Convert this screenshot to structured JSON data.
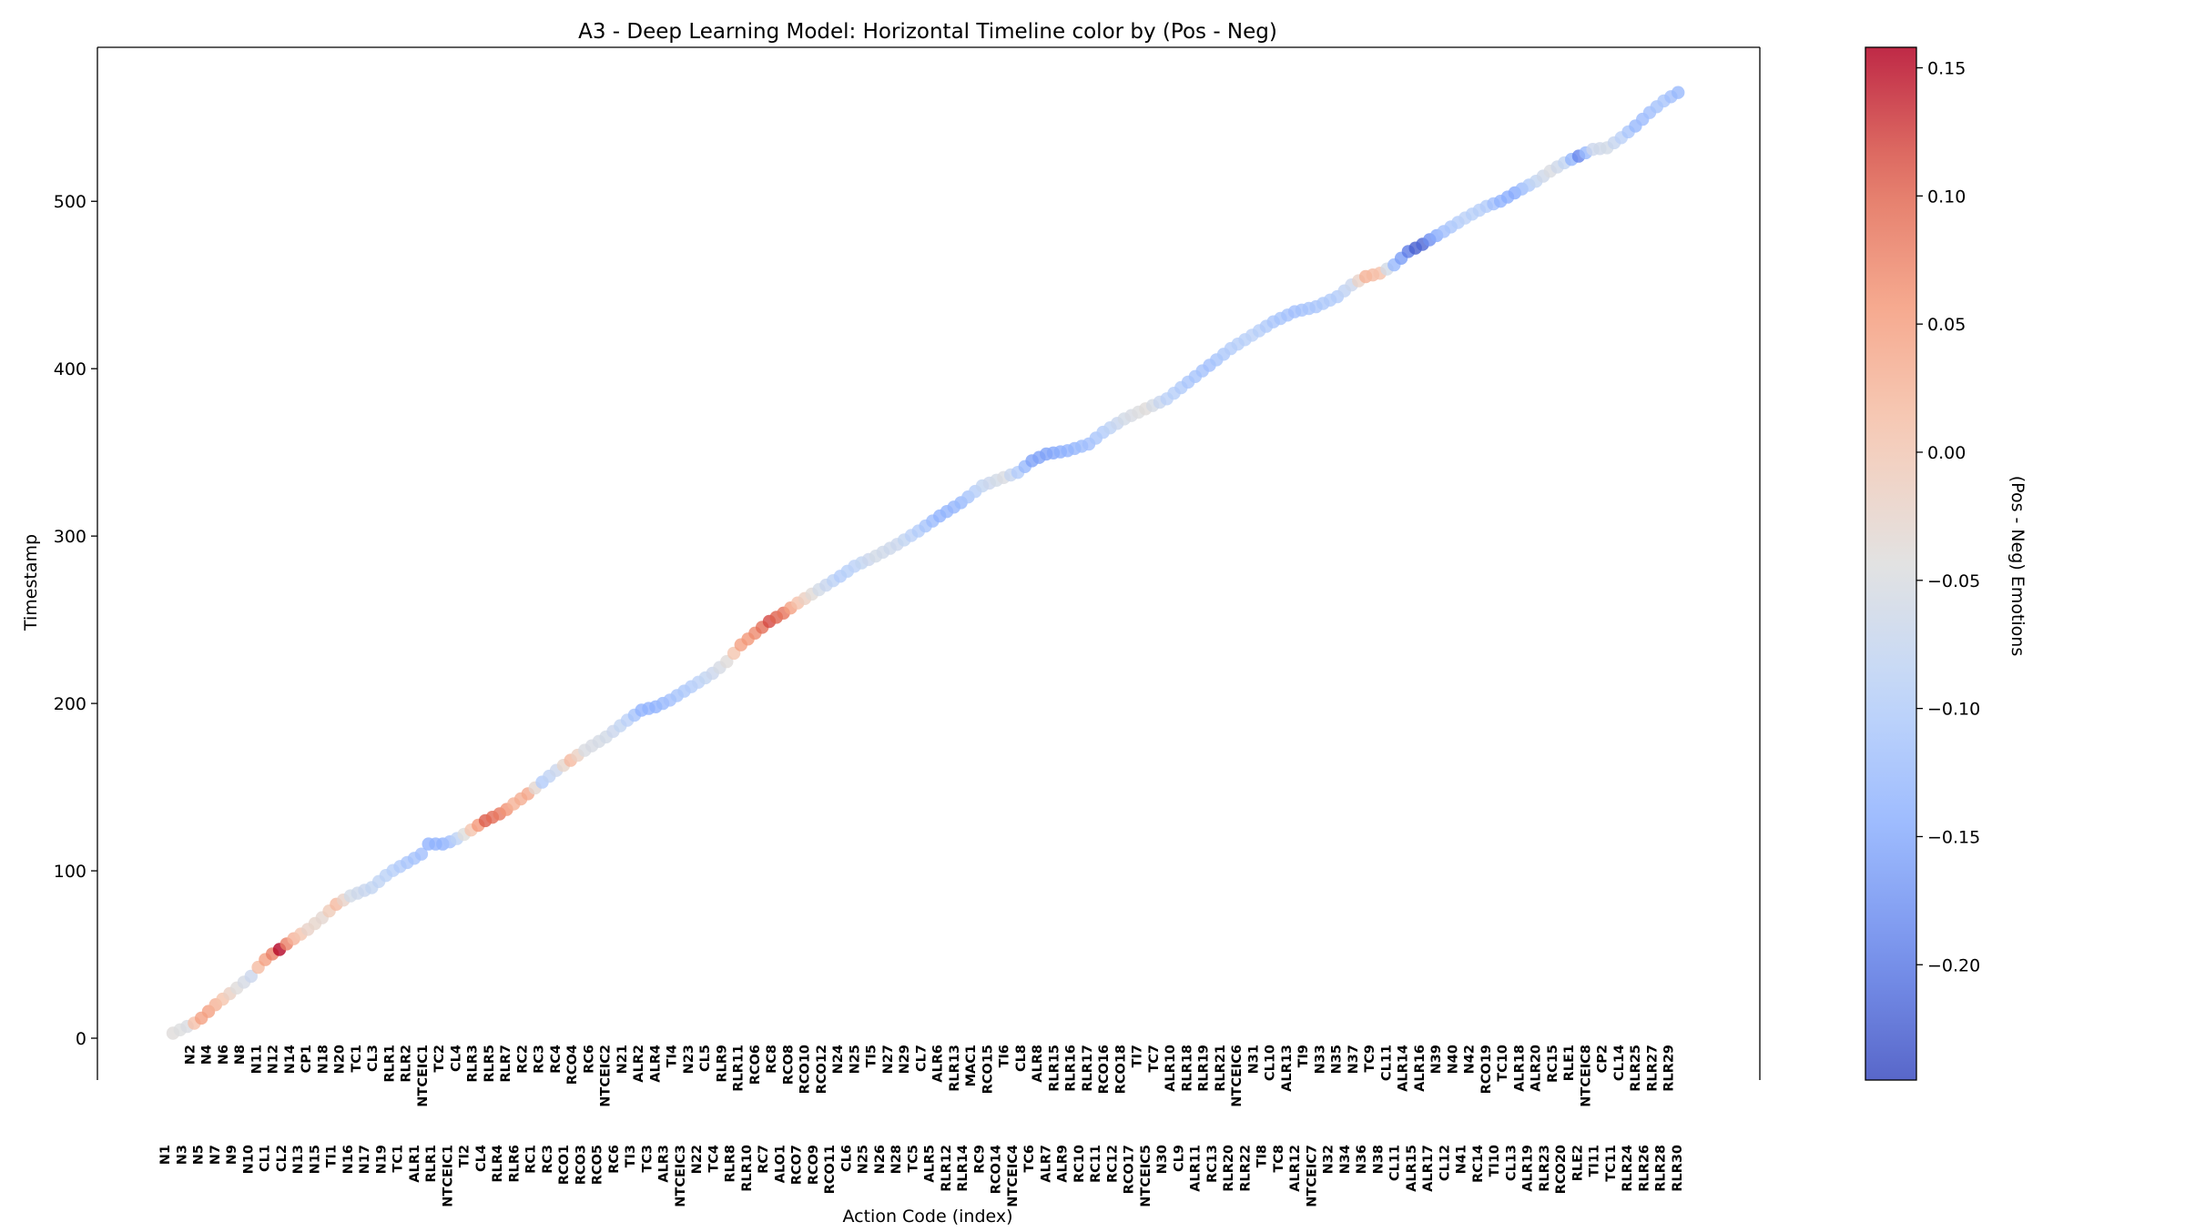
{
  "chart_data": {
    "type": "scatter",
    "title": "A3 - Deep Learning Model: Horizontal Timeline color by (Pos - Neg)",
    "xlabel": "Action Code (index)",
    "ylabel": "Timestamp",
    "ylim": [
      -25,
      592
    ],
    "yticks": [
      0,
      100,
      200,
      300,
      400,
      500
    ],
    "grid": false,
    "colorbar": {
      "label": "(Pos - Neg) Emotions",
      "min": -0.245,
      "max": 0.158,
      "ticks": [
        -0.2,
        -0.15,
        -0.1,
        -0.05,
        0.0,
        0.05,
        0.1,
        0.15
      ],
      "tick_labels": [
        "−0.20",
        "−0.15",
        "−0.10",
        "−0.05",
        "0.00",
        "0.05",
        "0.10",
        "0.15"
      ],
      "colormap": "coolwarm"
    },
    "row_top_labels": [
      "N2",
      "N4",
      "N6",
      "N8",
      "N11",
      "N12",
      "N14",
      "CP1",
      "N18",
      "N20",
      "TC1",
      "CL3",
      "RLR1",
      "RLR2",
      "NTCEIC1",
      "TC2",
      "CL4",
      "RLR3",
      "RLR5",
      "RLR7",
      "RC2",
      "RC3",
      "RC4",
      "RCO4",
      "RC6",
      "NTCEIC2",
      "N21",
      "ALR2",
      "ALR4",
      "TI4",
      "N23",
      "CL5",
      "RLR9",
      "RLR11",
      "RCO6",
      "RC8",
      "RCO8",
      "RCO10",
      "RCO12",
      "N24",
      "N25",
      "TI5",
      "N27",
      "N29",
      "CL7",
      "ALR6",
      "RLR13",
      "MAC1",
      "RCO15",
      "TI6",
      "CL8",
      "ALR8",
      "RLR15",
      "RLR16",
      "RLR17",
      "RCO16",
      "RCO18",
      "TI7",
      "TC7",
      "ALR10",
      "RLR18",
      "RLR19",
      "RLR21",
      "NTCEIC6",
      "N31",
      "CL10",
      "ALR13",
      "TI9",
      "N33",
      "N35",
      "N37",
      "TC9",
      "CL11",
      "ALR14",
      "ALR16",
      "N39",
      "N40",
      "N42",
      "RCO19",
      "TC10",
      "ALR18",
      "ALR20",
      "RC15",
      "RLE1",
      "NTCEIC8",
      "CP2",
      "CL14",
      "RLR25",
      "RLR27",
      "RLR29"
    ],
    "row_bottom_labels": [
      "N1",
      "N3",
      "N5",
      "N7",
      "N9",
      "N10",
      "CL1",
      "CL2",
      "N13",
      "N15",
      "TI1",
      "N16",
      "N17",
      "N19",
      "TC1",
      "ALR1",
      "RLR1",
      "NTCEIC1",
      "TI2",
      "CL4",
      "RLR4",
      "RLR6",
      "RC1",
      "RC3",
      "RCO1",
      "RCO3",
      "RCO5",
      "RC6",
      "TI3",
      "TC3",
      "ALR3",
      "NTCEIC3",
      "N22",
      "TC4",
      "RLR8",
      "RLR10",
      "RC7",
      "ALO1",
      "RCO7",
      "RCO9",
      "RCO11",
      "CL6",
      "N25",
      "N26",
      "N28",
      "TC5",
      "ALR5",
      "RLR12",
      "RLR14",
      "RC9",
      "RCO14",
      "NTCEIC4",
      "TC6",
      "ALR7",
      "ALR9",
      "RC10",
      "RC11",
      "RC12",
      "RCO17",
      "NTCEIC5",
      "N30",
      "CL9",
      "ALR11",
      "RC13",
      "RLR20",
      "RLR22",
      "TI8",
      "TC8",
      "ALR12",
      "NTCEIC7",
      "N32",
      "N34",
      "N36",
      "N38",
      "CL11",
      "ALR15",
      "ALR17",
      "CL12",
      "N41",
      "RC14",
      "TI10",
      "CL13",
      "ALR19",
      "RLR23",
      "RCO20",
      "RLE2",
      "TI11",
      "TC11",
      "RLR24",
      "RLR26",
      "RLR28",
      "RLR30"
    ],
    "anchors": [
      {
        "x": 0,
        "y": 3,
        "c": -0.04
      },
      {
        "x": 4,
        "y": 7,
        "c": -0.05
      },
      {
        "x": 7,
        "y": 10,
        "c": 0.04
      },
      {
        "x": 9,
        "y": 14,
        "c": 0.06
      },
      {
        "x": 12,
        "y": 20,
        "c": 0.03
      },
      {
        "x": 18,
        "y": 30,
        "c": -0.04
      },
      {
        "x": 22,
        "y": 37,
        "c": -0.07
      },
      {
        "x": 25,
        "y": 45,
        "c": 0.06
      },
      {
        "x": 27,
        "y": 49,
        "c": 0.04
      },
      {
        "x": 30,
        "y": 53,
        "c": 0.16
      },
      {
        "x": 33,
        "y": 58,
        "c": 0.04
      },
      {
        "x": 38,
        "y": 65,
        "c": -0.02
      },
      {
        "x": 42,
        "y": 72,
        "c": -0.03
      },
      {
        "x": 46,
        "y": 80,
        "c": 0.02
      },
      {
        "x": 50,
        "y": 85,
        "c": -0.06
      },
      {
        "x": 56,
        "y": 90,
        "c": -0.08
      },
      {
        "x": 61,
        "y": 99,
        "c": -0.09
      },
      {
        "x": 66,
        "y": 105,
        "c": -0.11
      },
      {
        "x": 70,
        "y": 110,
        "c": -0.12
      },
      {
        "x": 72,
        "y": 116,
        "c": -0.14
      },
      {
        "x": 76,
        "y": 116,
        "c": -0.14
      },
      {
        "x": 79,
        "y": 118,
        "c": -0.11
      },
      {
        "x": 83,
        "y": 123,
        "c": -0.02
      },
      {
        "x": 88,
        "y": 130,
        "c": 0.11
      },
      {
        "x": 93,
        "y": 135,
        "c": 0.08
      },
      {
        "x": 96,
        "y": 140,
        "c": 0.03
      },
      {
        "x": 100,
        "y": 146,
        "c": 0.04
      },
      {
        "x": 104,
        "y": 153,
        "c": -0.1
      },
      {
        "x": 108,
        "y": 160,
        "c": -0.07
      },
      {
        "x": 112,
        "y": 166,
        "c": 0.02
      },
      {
        "x": 116,
        "y": 172,
        "c": -0.05
      },
      {
        "x": 122,
        "y": 180,
        "c": -0.06
      },
      {
        "x": 128,
        "y": 190,
        "c": -0.09
      },
      {
        "x": 132,
        "y": 196,
        "c": -0.14
      },
      {
        "x": 136,
        "y": 198,
        "c": -0.14
      },
      {
        "x": 140,
        "y": 202,
        "c": -0.12
      },
      {
        "x": 146,
        "y": 210,
        "c": -0.1
      },
      {
        "x": 152,
        "y": 218,
        "c": -0.07
      },
      {
        "x": 156,
        "y": 225,
        "c": -0.04
      },
      {
        "x": 160,
        "y": 235,
        "c": 0.05
      },
      {
        "x": 164,
        "y": 242,
        "c": 0.07
      },
      {
        "x": 168,
        "y": 249,
        "c": 0.12
      },
      {
        "x": 172,
        "y": 254,
        "c": 0.09
      },
      {
        "x": 176,
        "y": 260,
        "c": 0.01
      },
      {
        "x": 182,
        "y": 268,
        "c": -0.06
      },
      {
        "x": 188,
        "y": 276,
        "c": -0.1
      },
      {
        "x": 192,
        "y": 282,
        "c": -0.09
      },
      {
        "x": 198,
        "y": 288,
        "c": -0.06
      },
      {
        "x": 204,
        "y": 295,
        "c": -0.07
      },
      {
        "x": 210,
        "y": 303,
        "c": -0.1
      },
      {
        "x": 216,
        "y": 312,
        "c": -0.14
      },
      {
        "x": 222,
        "y": 320,
        "c": -0.13
      },
      {
        "x": 228,
        "y": 330,
        "c": -0.08
      },
      {
        "x": 234,
        "y": 335,
        "c": -0.05
      },
      {
        "x": 238,
        "y": 338,
        "c": -0.1
      },
      {
        "x": 242,
        "y": 345,
        "c": -0.16
      },
      {
        "x": 246,
        "y": 349,
        "c": -0.16
      },
      {
        "x": 252,
        "y": 351,
        "c": -0.14
      },
      {
        "x": 258,
        "y": 355,
        "c": -0.12
      },
      {
        "x": 262,
        "y": 362,
        "c": -0.1
      },
      {
        "x": 268,
        "y": 370,
        "c": -0.06
      },
      {
        "x": 274,
        "y": 376,
        "c": -0.04
      },
      {
        "x": 280,
        "y": 382,
        "c": -0.09
      },
      {
        "x": 286,
        "y": 392,
        "c": -0.11
      },
      {
        "x": 292,
        "y": 402,
        "c": -0.12
      },
      {
        "x": 298,
        "y": 412,
        "c": -0.1
      },
      {
        "x": 304,
        "y": 420,
        "c": -0.09
      },
      {
        "x": 310,
        "y": 428,
        "c": -0.11
      },
      {
        "x": 316,
        "y": 434,
        "c": -0.12
      },
      {
        "x": 322,
        "y": 437,
        "c": -0.11
      },
      {
        "x": 328,
        "y": 443,
        "c": -0.1
      },
      {
        "x": 332,
        "y": 450,
        "c": -0.07
      },
      {
        "x": 336,
        "y": 455,
        "c": 0.03
      },
      {
        "x": 340,
        "y": 457,
        "c": 0.01
      },
      {
        "x": 344,
        "y": 462,
        "c": -0.13
      },
      {
        "x": 348,
        "y": 470,
        "c": -0.2
      },
      {
        "x": 351,
        "y": 473,
        "c": -0.24
      },
      {
        "x": 354,
        "y": 477,
        "c": -0.18
      },
      {
        "x": 358,
        "y": 482,
        "c": -0.12
      },
      {
        "x": 364,
        "y": 490,
        "c": -0.09
      },
      {
        "x": 370,
        "y": 497,
        "c": -0.1
      },
      {
        "x": 374,
        "y": 500,
        "c": -0.14
      },
      {
        "x": 378,
        "y": 505,
        "c": -0.15
      },
      {
        "x": 384,
        "y": 512,
        "c": -0.08
      },
      {
        "x": 388,
        "y": 518,
        "c": -0.05
      },
      {
        "x": 392,
        "y": 523,
        "c": -0.08
      },
      {
        "x": 396,
        "y": 527,
        "c": -0.19
      },
      {
        "x": 400,
        "y": 531,
        "c": -0.07
      },
      {
        "x": 404,
        "y": 532,
        "c": -0.06
      },
      {
        "x": 408,
        "y": 538,
        "c": -0.09
      },
      {
        "x": 412,
        "y": 545,
        "c": -0.13
      },
      {
        "x": 416,
        "y": 553,
        "c": -0.12
      },
      {
        "x": 420,
        "y": 560,
        "c": -0.11
      },
      {
        "x": 424,
        "y": 565,
        "c": -0.13
      }
    ]
  }
}
